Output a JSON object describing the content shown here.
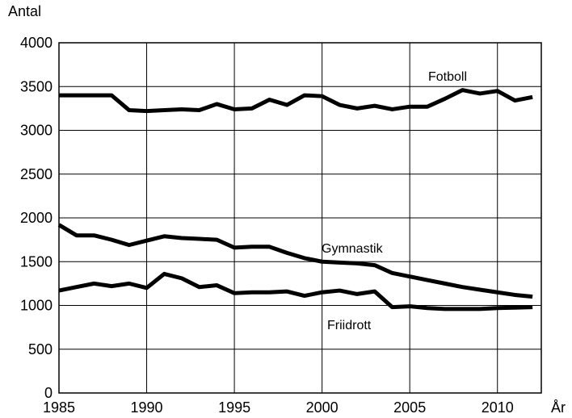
{
  "chart_data": {
    "type": "line",
    "y_label": "Antal",
    "x_label": "År",
    "x": [
      1985,
      1986,
      1987,
      1988,
      1989,
      1990,
      1991,
      1992,
      1993,
      1994,
      1995,
      1996,
      1997,
      1998,
      1999,
      2000,
      2001,
      2002,
      2003,
      2004,
      2005,
      2006,
      2007,
      2008,
      2009,
      2010,
      2011,
      2012
    ],
    "series": [
      {
        "name": "Fotboll",
        "color": "#000000",
        "values": [
          3400,
          3400,
          3400,
          3400,
          3230,
          3220,
          3230,
          3240,
          3230,
          3300,
          3240,
          3250,
          3350,
          3290,
          3400,
          3390,
          3290,
          3250,
          3280,
          3240,
          3270,
          3270,
          3360,
          3460,
          3420,
          3450,
          3340,
          3380
        ]
      },
      {
        "name": "Gymnastik",
        "color": "#000000",
        "values": [
          1920,
          1800,
          1800,
          1750,
          1690,
          1740,
          1790,
          1770,
          1760,
          1750,
          1660,
          1670,
          1670,
          1600,
          1540,
          1500,
          1490,
          1480,
          1460,
          1370,
          1330,
          1290,
          1250,
          1210,
          1180,
          1150,
          1120,
          1100
        ]
      },
      {
        "name": "Friidrott",
        "color": "#000000",
        "values": [
          1170,
          1210,
          1250,
          1220,
          1250,
          1200,
          1360,
          1310,
          1210,
          1230,
          1140,
          1150,
          1150,
          1160,
          1110,
          1150,
          1170,
          1130,
          1160,
          980,
          990,
          970,
          960,
          960,
          960,
          970,
          975,
          980
        ]
      }
    ],
    "xlim": [
      1985,
      2012.5
    ],
    "ylim": [
      0,
      4000
    ],
    "xticks": [
      1985,
      1990,
      1995,
      2000,
      2005,
      2010
    ],
    "yticks": [
      0,
      500,
      1000,
      1500,
      2000,
      2500,
      3000,
      3500,
      4000
    ],
    "grid": true
  }
}
